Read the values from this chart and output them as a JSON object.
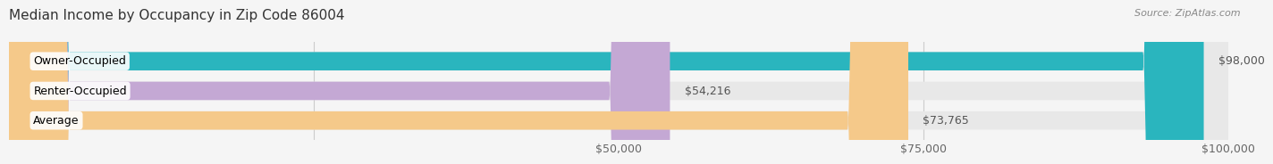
{
  "title": "Median Income by Occupancy in Zip Code 86004",
  "source": "Source: ZipAtlas.com",
  "categories": [
    "Owner-Occupied",
    "Renter-Occupied",
    "Average"
  ],
  "values": [
    98000,
    54216,
    73765
  ],
  "bar_colors": [
    "#2ab5be",
    "#c4a8d4",
    "#f5c98a"
  ],
  "value_labels": [
    "$98,000",
    "$54,216",
    "$73,765"
  ],
  "xlim": [
    0,
    100000
  ],
  "xticks": [
    25000,
    50000,
    75000,
    100000
  ],
  "xtick_labels": [
    "",
    "$50,000",
    "$75,000",
    "$100,000"
  ],
  "title_fontsize": 11,
  "source_fontsize": 8,
  "label_fontsize": 9,
  "tick_fontsize": 9,
  "background_color": "#f5f5f5",
  "bar_bg_full": "#e8e8e8"
}
